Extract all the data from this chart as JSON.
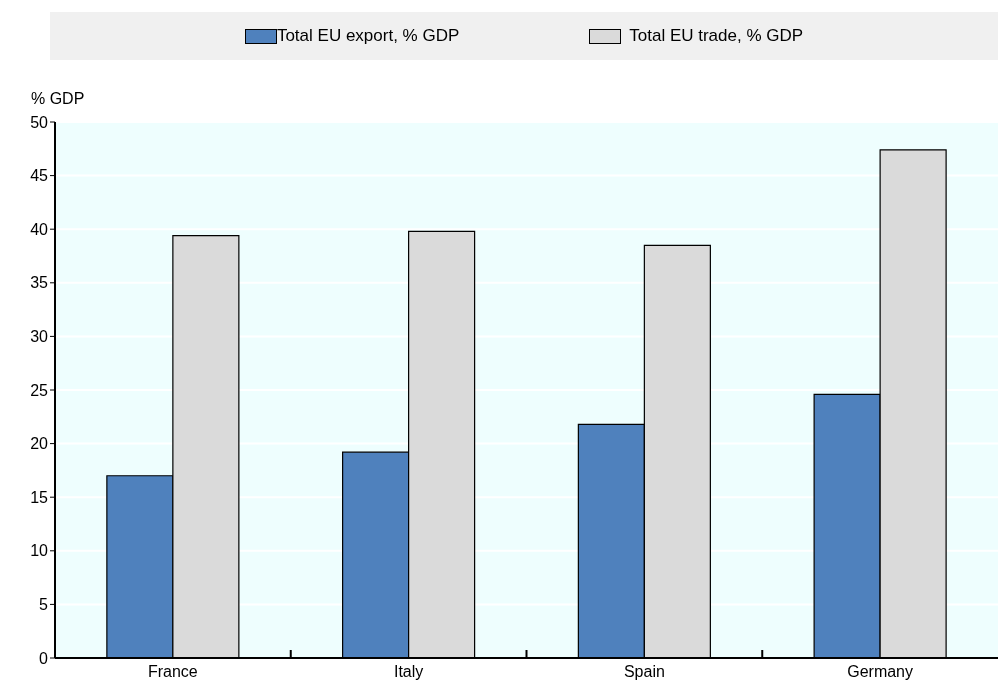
{
  "chart_data": {
    "type": "bar",
    "ylabel": "% GDP",
    "categories": [
      "France",
      "Italy",
      "Spain",
      "Germany"
    ],
    "series": [
      {
        "name": "Total EU export, % GDP",
        "color": "#4f81bd",
        "values": [
          17.0,
          19.2,
          21.8,
          24.6
        ]
      },
      {
        "name": "Total EU trade, % GDP",
        "color": "#dadada",
        "values": [
          39.4,
          39.8,
          38.5,
          47.4
        ]
      }
    ],
    "ylim": [
      0,
      50
    ],
    "yticks": [
      0,
      5,
      10,
      15,
      20,
      25,
      30,
      35,
      40,
      45,
      50
    ],
    "grid": true,
    "legend": "top"
  }
}
